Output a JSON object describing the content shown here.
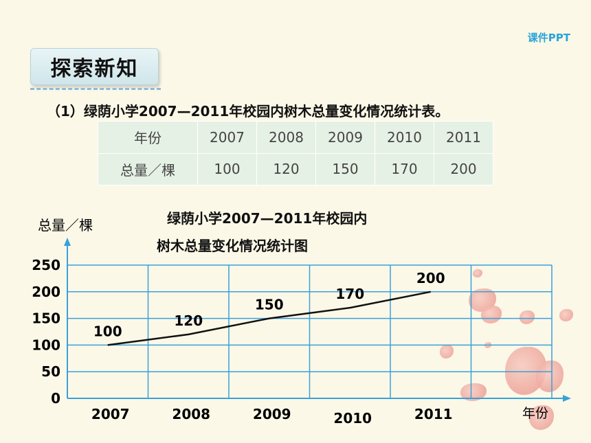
{
  "brand": "课件PPT",
  "section_title": "探索新知",
  "table_caption": "（1）绿荫小学2007—2011年校园内树木总量变化情况统计表。",
  "table": {
    "row_header_year": "年份",
    "row_header_total": "总量／棵",
    "years": [
      "2007",
      "2008",
      "2009",
      "2010",
      "2011"
    ],
    "totals": [
      "100",
      "120",
      "150",
      "170",
      "200"
    ]
  },
  "chart_data": {
    "type": "line",
    "title_line1": "绿荫小学2007—2011年校园内",
    "title_line2": "树木总量变化情况统计图",
    "ylabel": "总量／棵",
    "xlabel": "年份",
    "categories": [
      "2007",
      "2008",
      "2009",
      "2010",
      "2011"
    ],
    "values": [
      100,
      120,
      150,
      170,
      200
    ],
    "data_labels": [
      "100",
      "120",
      "150",
      "170",
      "200"
    ],
    "yticks": [
      "0",
      "50",
      "100",
      "150",
      "200",
      "250"
    ],
    "ytick_values": [
      0,
      50,
      100,
      150,
      200,
      250
    ],
    "ylim": [
      0,
      250
    ],
    "grid": true,
    "line_color": "#111111",
    "grid_color": "#3aa0d8",
    "axis_color": "#3aa0d8"
  }
}
